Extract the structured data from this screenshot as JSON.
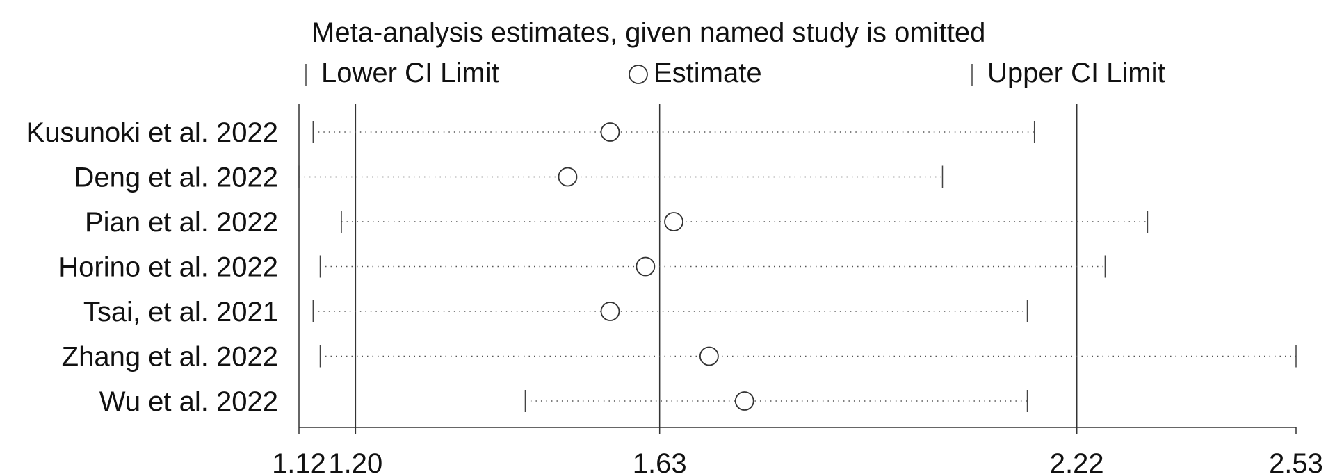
{
  "chart_data": {
    "type": "forest",
    "title": "Meta-analysis estimates, given named study is omitted",
    "legend": {
      "lower": "Lower CI Limit",
      "estimate": "Estimate",
      "upper": "Upper CI Limit"
    },
    "xlim": [
      1.12,
      2.53
    ],
    "ticks": [
      1.12,
      1.2,
      1.63,
      2.22,
      2.53
    ],
    "tick_labels": [
      "1.12",
      "1.20",
      "1.63",
      "2.22",
      "2.53"
    ],
    "reference_lines": [
      1.2,
      1.63,
      2.22
    ],
    "studies": [
      {
        "name": "Kusunoki et al. 2022",
        "lower": 1.14,
        "estimate": 1.56,
        "upper": 2.16
      },
      {
        "name": "Deng et al. 2022",
        "lower": 1.12,
        "estimate": 1.5,
        "upper": 2.03
      },
      {
        "name": "Pian et al. 2022",
        "lower": 1.18,
        "estimate": 1.65,
        "upper": 2.32
      },
      {
        "name": "Horino et al. 2022",
        "lower": 1.15,
        "estimate": 1.61,
        "upper": 2.26
      },
      {
        "name": "Tsai, et al. 2021",
        "lower": 1.14,
        "estimate": 1.56,
        "upper": 2.15
      },
      {
        "name": "Zhang et al. 2022",
        "lower": 1.15,
        "estimate": 1.7,
        "upper": 2.53
      },
      {
        "name": "Wu et al. 2022",
        "lower": 1.44,
        "estimate": 1.75,
        "upper": 2.15
      }
    ]
  }
}
